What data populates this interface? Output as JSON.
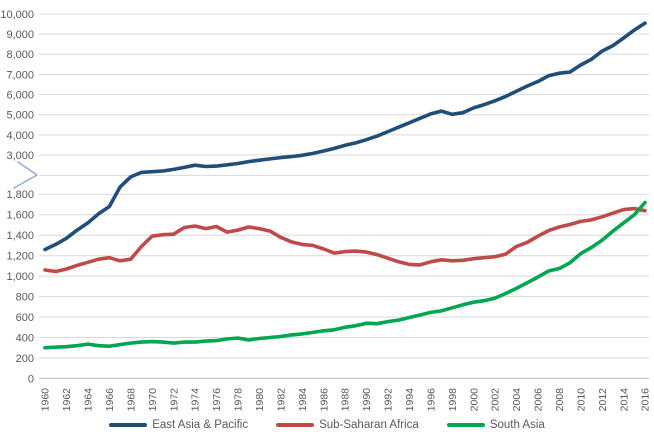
{
  "chart_data": {
    "type": "line",
    "title": "",
    "years": [
      1960,
      1961,
      1962,
      1963,
      1964,
      1965,
      1966,
      1967,
      1968,
      1969,
      1970,
      1971,
      1972,
      1973,
      1974,
      1975,
      1976,
      1977,
      1978,
      1979,
      1980,
      1981,
      1982,
      1983,
      1984,
      1985,
      1986,
      1987,
      1988,
      1989,
      1990,
      1991,
      1992,
      1993,
      1994,
      1995,
      1996,
      1997,
      1998,
      1999,
      2000,
      2001,
      2002,
      2003,
      2004,
      2005,
      2006,
      2007,
      2008,
      2009,
      2010,
      2011,
      2012,
      2013,
      2014,
      2015,
      2016
    ],
    "x_tick_labels": [
      "1960",
      "1962",
      "1964",
      "1966",
      "1968",
      "1970",
      "1972",
      "1974",
      "1976",
      "1978",
      "1980",
      "1982",
      "1984",
      "1986",
      "1988",
      "1990",
      "1992",
      "1994",
      "1996",
      "1998",
      "2000",
      "2002",
      "2004",
      "2006",
      "2008",
      "2010",
      "2012",
      "2014",
      "2016"
    ],
    "series": [
      {
        "name": "East Asia & Pacific",
        "color": "#1F4E79",
        "values": [
          1260,
          1310,
          1370,
          1450,
          1520,
          1610,
          1680,
          2020,
          2330,
          2470,
          2490,
          2510,
          2560,
          2620,
          2690,
          2650,
          2660,
          2700,
          2740,
          2800,
          2840,
          2880,
          2920,
          2950,
          2990,
          3080,
          3200,
          3330,
          3480,
          3600,
          3760,
          3940,
          4160,
          4380,
          4600,
          4820,
          5040,
          5180,
          5020,
          5100,
          5340,
          5500,
          5690,
          5910,
          6160,
          6420,
          6650,
          6930,
          7060,
          7120,
          7470,
          7750,
          8160,
          8430,
          8810,
          9200,
          9550
        ]
      },
      {
        "name": "Sub-Saharan Africa",
        "color": "#BE4B48",
        "values": [
          1060,
          1045,
          1070,
          1105,
          1135,
          1165,
          1180,
          1150,
          1165,
          1290,
          1390,
          1405,
          1410,
          1475,
          1490,
          1465,
          1485,
          1430,
          1450,
          1480,
          1465,
          1440,
          1380,
          1335,
          1310,
          1300,
          1265,
          1225,
          1240,
          1245,
          1235,
          1210,
          1175,
          1140,
          1115,
          1110,
          1140,
          1160,
          1150,
          1155,
          1170,
          1180,
          1190,
          1215,
          1290,
          1330,
          1390,
          1445,
          1480,
          1505,
          1535,
          1550,
          1580,
          1615,
          1650,
          1660,
          1640
        ]
      },
      {
        "name": "South Asia",
        "color": "#00A651",
        "values": [
          300,
          305,
          310,
          320,
          335,
          320,
          315,
          330,
          345,
          355,
          360,
          355,
          345,
          355,
          355,
          365,
          370,
          385,
          395,
          375,
          390,
          400,
          410,
          425,
          435,
          450,
          465,
          475,
          500,
          515,
          540,
          535,
          555,
          570,
          595,
          620,
          645,
          660,
          690,
          720,
          745,
          760,
          785,
          830,
          880,
          935,
          990,
          1050,
          1075,
          1130,
          1220,
          1280,
          1350,
          1440,
          1520,
          1600,
          1720
        ]
      }
    ],
    "y_axis": {
      "broken": true,
      "lower": {
        "min": 0,
        "max": 1800,
        "step": 200,
        "tick_values": [
          1800,
          1600,
          1400,
          1200,
          1000,
          800,
          600,
          400,
          200,
          0
        ],
        "tick_labels": [
          "1,800",
          "1,600",
          "1,400",
          "1,200",
          "1,000",
          "800",
          "600",
          "400",
          "200",
          "0"
        ]
      },
      "upper": {
        "min": 3000,
        "max": 10000,
        "step": 1000,
        "tick_values": [
          10000,
          9000,
          8000,
          7000,
          6000,
          5000,
          4000,
          3000
        ],
        "tick_labels": [
          "10,000",
          "9,000",
          "8,000",
          "7,000",
          "6,000",
          "5,000",
          "4,000",
          "3,000"
        ]
      },
      "break_gap": {
        "from": 1800,
        "to": 3000
      }
    },
    "grid": true,
    "legend_position": "bottom"
  },
  "colors": {
    "background": "#FFFFFF",
    "gridline": "#D9D9D9",
    "axis_zero_line": "#BFBFBF",
    "tick_text": "#595959",
    "break_symbol": "#8FAADC"
  }
}
